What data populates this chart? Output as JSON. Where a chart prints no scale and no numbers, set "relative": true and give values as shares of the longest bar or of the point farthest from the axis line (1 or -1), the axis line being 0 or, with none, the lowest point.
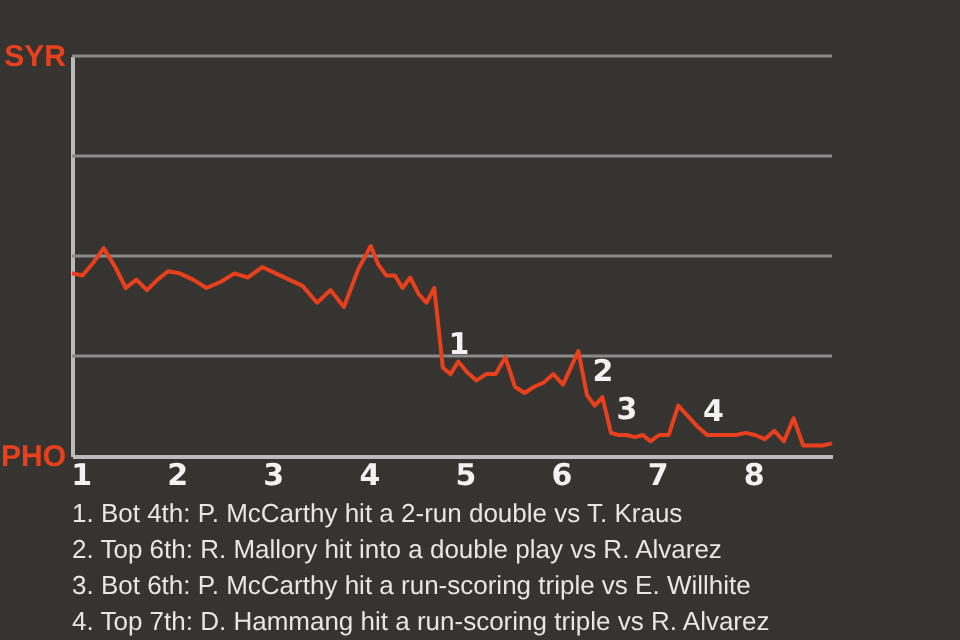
{
  "chart_data": {
    "type": "line",
    "x": [
      0.91,
      1.02,
      1.13,
      1.24,
      1.36,
      1.47,
      1.58,
      1.69,
      1.8,
      1.91,
      2.03,
      2.17,
      2.31,
      2.46,
      2.6,
      2.74,
      2.89,
      3.03,
      3.17,
      3.31,
      3.46,
      3.6,
      3.74,
      3.89,
      4.02,
      4.1,
      4.18,
      4.27,
      4.35,
      4.43,
      4.52,
      4.6,
      4.68,
      4.77,
      4.85,
      4.93,
      5.02,
      5.12,
      5.22,
      5.32,
      5.42,
      5.52,
      5.62,
      5.72,
      5.82,
      5.92,
      6.02,
      6.1,
      6.18,
      6.27,
      6.35,
      6.43,
      6.52,
      6.6,
      6.68,
      6.77,
      6.85,
      6.93,
      7.02,
      7.12,
      7.22,
      7.32,
      7.42,
      7.52,
      7.62,
      7.72,
      7.82,
      7.92,
      8.02,
      8.12,
      8.22,
      8.32,
      8.42,
      8.52,
      8.62,
      8.72,
      8.82
    ],
    "relative": true,
    "series": [
      {
        "color": "#e8401c",
        "values": [
          0.87,
          0.86,
          0.92,
          0.99,
          0.9,
          0.8,
          0.84,
          0.79,
          0.84,
          0.88,
          0.87,
          0.84,
          0.8,
          0.83,
          0.87,
          0.85,
          0.9,
          0.87,
          0.84,
          0.81,
          0.73,
          0.79,
          0.71,
          0.89,
          1,
          0.91,
          0.86,
          0.86,
          0.8,
          0.85,
          0.77,
          0.73,
          0.8,
          0.42,
          0.39,
          0.45,
          0.4,
          0.36,
          0.39,
          0.39,
          0.47,
          0.33,
          0.3,
          0.33,
          0.35,
          0.39,
          0.34,
          0.42,
          0.5,
          0.29,
          0.24,
          0.28,
          0.11,
          0.1,
          0.1,
          0.09,
          0.1,
          0.07,
          0.1,
          0.1,
          0.24,
          0.19,
          0.14,
          0.1,
          0.1,
          0.1,
          0.1,
          0.11,
          0.1,
          0.08,
          0.12,
          0.07,
          0.18,
          0.05,
          0.05,
          0.05,
          0.06
        ]
      }
    ],
    "xlim": [
      0.91,
      8.82
    ],
    "xticks": [
      1,
      2,
      3,
      4,
      5,
      6,
      7,
      8
    ],
    "ref_lines": [
      {
        "axis": "y",
        "value": 0.476,
        "color": "#8a8a8a"
      },
      {
        "axis": "y",
        "value": 0.952,
        "color": "#8a8a8a"
      },
      {
        "axis": "y",
        "value": 1.429,
        "color": "#8a8a8a"
      },
      {
        "axis": "y",
        "value": 1.905,
        "color": "#8a8a8a"
      }
    ],
    "annotations": [
      "SYR",
      "PHO",
      {
        "text": "1",
        "x": 4.77,
        "y": 0.42
      },
      {
        "text": "2",
        "x": 6.27,
        "y": 0.29
      },
      {
        "text": "3",
        "x": 6.52,
        "y": 0.11
      },
      {
        "text": "4",
        "x": 7.42,
        "y": 0.1
      },
      "1. Bot 4th: P. McCarthy hit a 2-run double vs T. Kraus",
      "2. Top 6th: R. Mallory hit into a double play vs R. Alvarez",
      "3. Bot 6th: P. McCarthy hit a run-scoring triple vs E. Willhite",
      "4. Top 7th: D. Hammang hit a run-scoring triple vs R. Alvarez"
    ]
  }
}
